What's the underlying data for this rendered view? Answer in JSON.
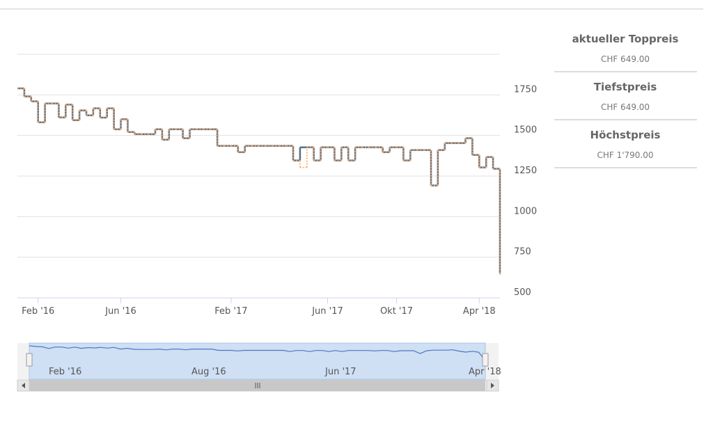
{
  "chart_data": {
    "type": "step",
    "categories": [
      null,
      null,
      null,
      "Feb '16",
      null,
      null,
      null,
      null,
      null,
      null,
      null,
      null,
      null,
      null,
      null,
      "Jun '16",
      null,
      null,
      null,
      null,
      null,
      null,
      null,
      null,
      null,
      null,
      null,
      null,
      null,
      null,
      null,
      "Feb '17",
      null,
      null,
      null,
      null,
      null,
      null,
      null,
      null,
      null,
      null,
      null,
      null,
      null,
      "Jun '17",
      null,
      null,
      null,
      null,
      null,
      null,
      null,
      null,
      null,
      "Okt '17",
      null,
      null,
      null,
      null,
      null,
      null,
      null,
      null,
      null,
      null,
      null,
      "Apr '18",
      null,
      null,
      null
    ],
    "series": [
      {
        "color": "#5b6e82",
        "values": [
          1790,
          1740,
          1710,
          1581,
          1697,
          1697,
          1611,
          1690,
          1594,
          1654,
          1624,
          1667,
          1610,
          1667,
          1538,
          1600,
          1521,
          1508,
          1508,
          1508,
          1538,
          1474,
          1538,
          1538,
          1483,
          1538,
          1538,
          1538,
          1538,
          1436,
          1436,
          1436,
          1397,
          1436,
          1436,
          1436,
          1436,
          1436,
          1436,
          1436,
          1346,
          1427,
          1427,
          1346,
          1427,
          1427,
          1346,
          1427,
          1346,
          1427,
          1427,
          1427,
          1427,
          1397,
          1427,
          1427,
          1346,
          1410,
          1410,
          1410,
          1192,
          1410,
          1453,
          1453,
          1453,
          1483,
          1380,
          1303,
          1367,
          1295,
          649
        ]
      },
      {
        "color": "#f7a35c",
        "values": [
          1790,
          1740,
          1710,
          1581,
          1697,
          1697,
          1611,
          1690,
          1594,
          1654,
          1624,
          1667,
          1610,
          1667,
          1538,
          1600,
          1521,
          1508,
          1508,
          1508,
          1538,
          1474,
          1538,
          1538,
          1483,
          1538,
          1538,
          1538,
          1538,
          1436,
          1436,
          1436,
          1397,
          1436,
          1436,
          1436,
          1436,
          1436,
          1436,
          1436,
          1346,
          1303,
          1427,
          1346,
          1427,
          1427,
          1346,
          1427,
          1346,
          1427,
          1427,
          1427,
          1427,
          1397,
          1427,
          1427,
          1346,
          1410,
          1410,
          1410,
          1192,
          1410,
          1453,
          1453,
          1453,
          1483,
          1380,
          1303,
          1367,
          1295,
          649
        ]
      }
    ],
    "ylim": [
      500,
      2000
    ],
    "yticks": [
      500,
      750,
      1000,
      1250,
      1500,
      1750
    ],
    "grid": true,
    "navigator_labels": [
      "Feb '16",
      "Aug '16",
      "Jun '17",
      "Apr '18"
    ]
  },
  "price_summary": [
    {
      "label": "aktueller Toppreis",
      "value": "CHF 649.00"
    },
    {
      "label": "Tiefstpreis",
      "value": "CHF 649.00"
    },
    {
      "label": "Höchstpreis",
      "value": "CHF 1'790.00"
    }
  ]
}
